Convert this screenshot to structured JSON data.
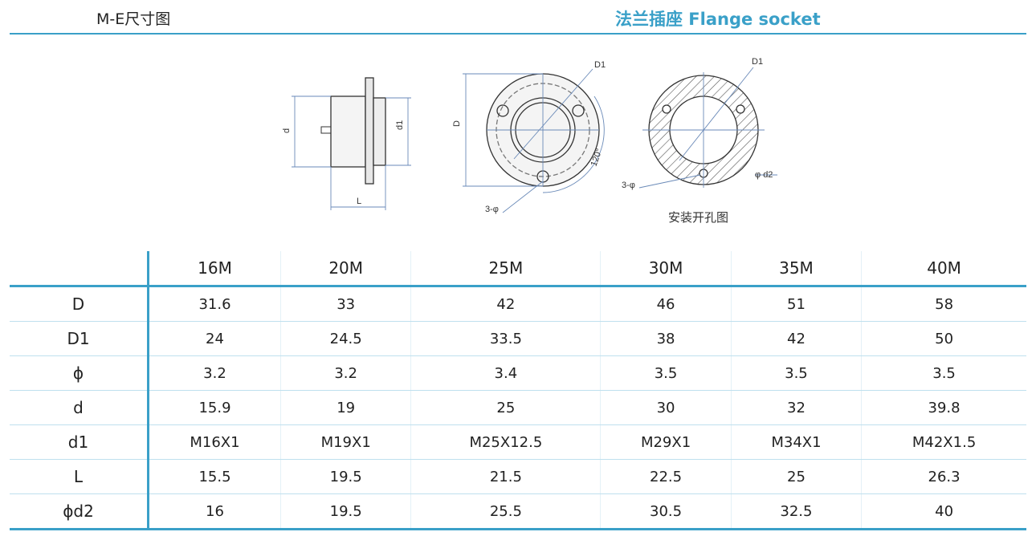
{
  "header": {
    "title": "M-E尺寸图",
    "subtitle": "法兰插座  Flange socket"
  },
  "drawings": {
    "side": {
      "labels": [
        "d",
        "d1",
        "L"
      ]
    },
    "front": {
      "labels": [
        "D1",
        "D",
        "3-φ",
        "120°"
      ]
    },
    "cutout": {
      "labels": [
        "D1",
        "3-φ",
        "φ d2"
      ],
      "caption": "安装开孔图"
    }
  },
  "table": {
    "columns": [
      "16M",
      "20M",
      "25M",
      "30M",
      "35M",
      "40M"
    ],
    "rows": [
      {
        "label": "D",
        "values": [
          "31.6",
          "33",
          "42",
          "46",
          "51",
          "58"
        ]
      },
      {
        "label": "D1",
        "values": [
          "24",
          "24.5",
          "33.5",
          "38",
          "42",
          "50"
        ]
      },
      {
        "label": "ϕ",
        "values": [
          "3.2",
          "3.2",
          "3.4",
          "3.5",
          "3.5",
          "3.5"
        ]
      },
      {
        "label": "d",
        "values": [
          "15.9",
          "19",
          "25",
          "30",
          "32",
          "39.8"
        ]
      },
      {
        "label": "d1",
        "values": [
          "M16X1",
          "M19X1",
          "M25X12.5",
          "M29X1",
          "M34X1",
          "M42X1.5"
        ]
      },
      {
        "label": "L",
        "values": [
          "15.5",
          "19.5",
          "21.5",
          "22.5",
          "25",
          "26.3"
        ]
      },
      {
        "label": "ϕd2",
        "values": [
          "16",
          "19.5",
          "25.5",
          "30.5",
          "32.5",
          "40"
        ]
      }
    ]
  }
}
